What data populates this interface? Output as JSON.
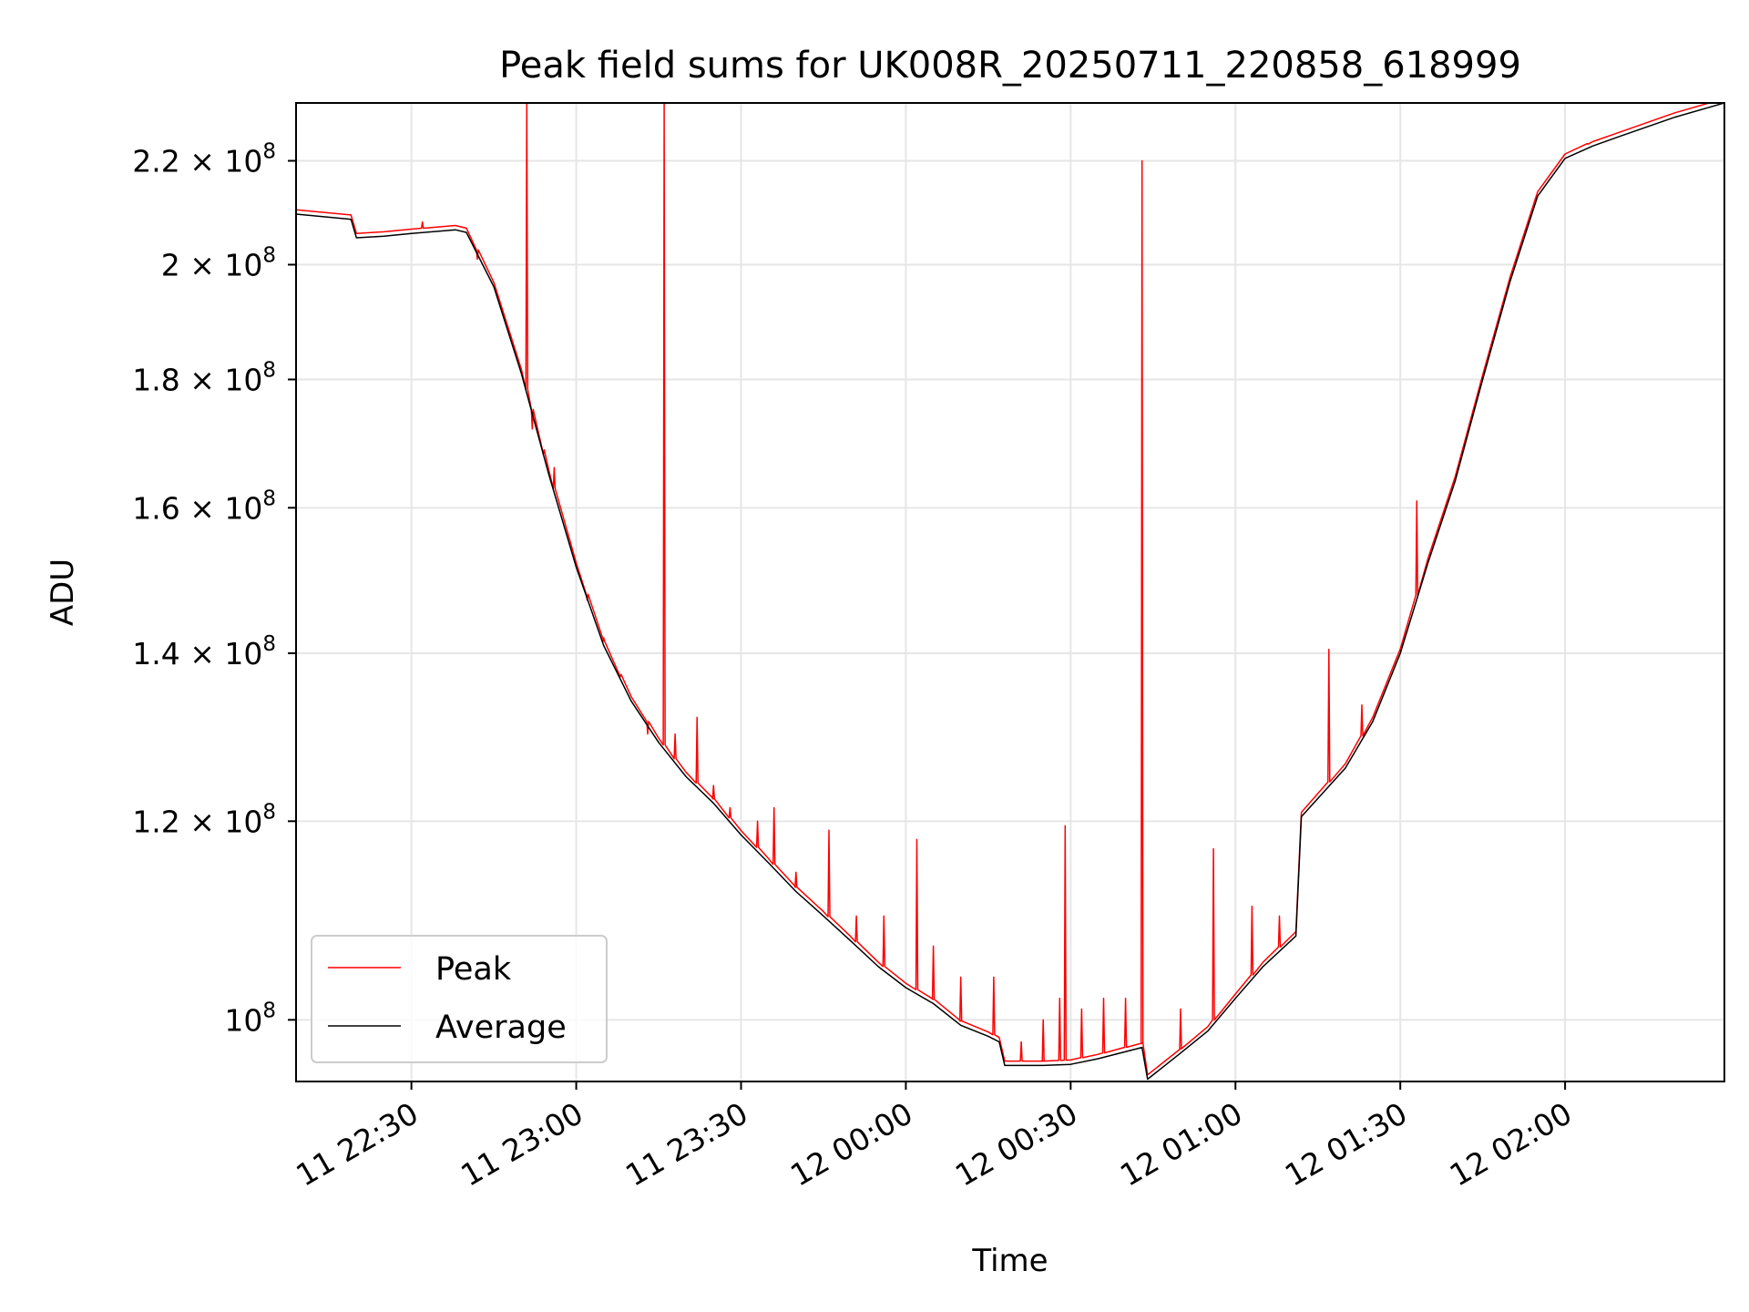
{
  "chart_data": {
    "type": "line",
    "title": "Peak field sums for UK008R_20250711_220858_618999",
    "xlabel": "Time",
    "ylabel": "ADU",
    "y_scale": "log",
    "grid": true,
    "legend_position": "lower-left",
    "xlim": [
      "2025-07-11 22:09",
      "2025-07-12 02:29"
    ],
    "ylim": [
      94500000,
      232000000
    ],
    "x_ticks": [
      {
        "time": "2025-07-11 22:30",
        "label": "11 22:30"
      },
      {
        "time": "2025-07-11 23:00",
        "label": "11 23:00"
      },
      {
        "time": "2025-07-11 23:30",
        "label": "11 23:30"
      },
      {
        "time": "2025-07-12 00:00",
        "label": "12 00:00"
      },
      {
        "time": "2025-07-12 00:30",
        "label": "12 00:30"
      },
      {
        "time": "2025-07-12 01:00",
        "label": "12 01:00"
      },
      {
        "time": "2025-07-12 01:30",
        "label": "12 01:30"
      },
      {
        "time": "2025-07-12 02:00",
        "label": "12 02:00"
      }
    ],
    "y_ticks": [
      {
        "value": 100000000,
        "mantissa": "",
        "exponent": "8"
      },
      {
        "value": 120000000,
        "mantissa": "1.2",
        "exponent": "8"
      },
      {
        "value": 140000000,
        "mantissa": "1.4",
        "exponent": "8"
      },
      {
        "value": 160000000,
        "mantissa": "1.6",
        "exponent": "8"
      },
      {
        "value": 180000000,
        "mantissa": "1.8",
        "exponent": "8"
      },
      {
        "value": 200000000,
        "mantissa": "2",
        "exponent": "8"
      },
      {
        "value": 220000000,
        "mantissa": "2.2",
        "exponent": "8"
      }
    ],
    "series": [
      {
        "name": "Average",
        "color": "#000000",
        "points": [
          [
            "2025-07-11 22:09",
            209500000
          ],
          [
            "2025-07-11 22:19",
            208500000
          ],
          [
            "2025-07-11 22:20",
            205000000
          ],
          [
            "2025-07-11 22:25",
            205300000
          ],
          [
            "2025-07-11 22:30",
            205800000
          ],
          [
            "2025-07-11 22:38",
            206500000
          ],
          [
            "2025-07-11 22:40",
            206000000
          ],
          [
            "2025-07-11 22:45",
            196000000
          ],
          [
            "2025-07-11 22:50",
            181000000
          ],
          [
            "2025-07-11 22:55",
            165000000
          ],
          [
            "2025-07-11 23:00",
            151500000
          ],
          [
            "2025-07-11 23:05",
            141000000
          ],
          [
            "2025-07-11 23:10",
            134000000
          ],
          [
            "2025-07-11 23:15",
            129000000
          ],
          [
            "2025-07-11 23:20",
            125000000
          ],
          [
            "2025-07-11 23:25",
            122000000
          ],
          [
            "2025-07-11 23:30",
            118500000
          ],
          [
            "2025-07-11 23:35",
            115500000
          ],
          [
            "2025-07-11 23:40",
            112500000
          ],
          [
            "2025-07-11 23:45",
            110000000
          ],
          [
            "2025-07-11 23:50",
            107500000
          ],
          [
            "2025-07-11 23:55",
            105000000
          ],
          [
            "2025-07-12 00:00",
            103000000
          ],
          [
            "2025-07-12 00:05",
            101500000
          ],
          [
            "2025-07-12 00:10",
            99500000
          ],
          [
            "2025-07-12 00:15",
            98500000
          ],
          [
            "2025-07-12 00:17",
            98000000
          ],
          [
            "2025-07-12 00:18",
            95900000
          ],
          [
            "2025-07-12 00:25",
            95900000
          ],
          [
            "2025-07-12 00:30",
            96000000
          ],
          [
            "2025-07-12 00:35",
            96500000
          ],
          [
            "2025-07-12 00:43",
            97500000
          ],
          [
            "2025-07-12 00:44",
            94700000
          ],
          [
            "2025-07-12 00:50",
            97000000
          ],
          [
            "2025-07-12 00:55",
            99000000
          ],
          [
            "2025-07-12 01:00",
            102000000
          ],
          [
            "2025-07-12 01:05",
            105000000
          ],
          [
            "2025-07-12 01:11",
            108000000
          ],
          [
            "2025-07-12 01:12",
            120500000
          ],
          [
            "2025-07-12 01:20",
            126000000
          ],
          [
            "2025-07-12 01:25",
            131500000
          ],
          [
            "2025-07-12 01:30",
            140000000
          ],
          [
            "2025-07-12 01:35",
            152000000
          ],
          [
            "2025-07-12 01:40",
            164000000
          ],
          [
            "2025-07-12 01:45",
            180000000
          ],
          [
            "2025-07-12 01:50",
            197000000
          ],
          [
            "2025-07-12 01:55",
            213000000
          ],
          [
            "2025-07-12 02:00",
            220500000
          ],
          [
            "2025-07-12 02:05",
            223000000
          ],
          [
            "2025-07-12 02:10",
            225000000
          ],
          [
            "2025-07-12 02:20",
            229000000
          ],
          [
            "2025-07-12 02:29",
            232000000
          ]
        ]
      },
      {
        "name": "Peak",
        "color": "#ff0000",
        "spikes": [
          [
            "2025-07-11 22:32",
            208000000
          ],
          [
            "2025-07-11 22:42",
            201000000
          ],
          [
            "2025-07-11 22:54",
            168000000
          ],
          [
            "2025-07-11 22:52",
            172000000
          ],
          [
            "2025-07-11 22:51",
            232000000
          ],
          [
            "2025-07-11 22:56",
            166000000
          ],
          [
            "2025-07-11 23:02",
            147000000
          ],
          [
            "2025-07-11 23:05",
            142000000
          ],
          [
            "2025-07-11 23:08",
            137000000
          ],
          [
            "2025-07-11 23:13",
            130000000
          ],
          [
            "2025-07-11 23:16",
            232000000
          ],
          [
            "2025-07-11 23:18",
            130000000
          ],
          [
            "2025-07-11 23:22",
            132000000
          ],
          [
            "2025-07-11 23:25",
            124000000
          ],
          [
            "2025-07-11 23:28",
            121500000
          ],
          [
            "2025-07-11 23:33",
            120000000
          ],
          [
            "2025-07-11 23:36",
            121500000
          ],
          [
            "2025-07-11 23:40",
            114500000
          ],
          [
            "2025-07-11 23:46",
            119000000
          ],
          [
            "2025-07-11 23:51",
            110000000
          ],
          [
            "2025-07-11 23:56",
            110000000
          ],
          [
            "2025-07-12 00:02",
            118000000
          ],
          [
            "2025-07-12 00:05",
            107000000
          ],
          [
            "2025-07-12 00:10",
            104000000
          ],
          [
            "2025-07-12 00:16",
            104000000
          ],
          [
            "2025-07-12 00:21",
            98000000
          ],
          [
            "2025-07-12 00:25",
            100000000
          ],
          [
            "2025-07-12 00:28",
            102000000
          ],
          [
            "2025-07-12 00:29",
            119500000
          ],
          [
            "2025-07-12 00:32",
            101000000
          ],
          [
            "2025-07-12 00:36",
            102000000
          ],
          [
            "2025-07-12 00:40",
            102000000
          ],
          [
            "2025-07-12 00:43",
            220000000
          ],
          [
            "2025-07-12 00:50",
            101000000
          ],
          [
            "2025-07-12 00:56",
            117000000
          ],
          [
            "2025-07-12 01:03",
            111000000
          ],
          [
            "2025-07-12 01:08",
            110000000
          ],
          [
            "2025-07-12 01:17",
            140500000
          ],
          [
            "2025-07-12 01:23",
            133500000
          ],
          [
            "2025-07-12 01:33",
            161000000
          ],
          [
            "2025-07-12 02:04",
            223500000
          ]
        ]
      }
    ]
  }
}
